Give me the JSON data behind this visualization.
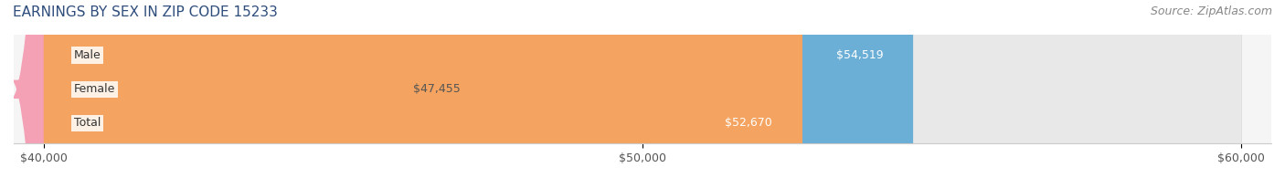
{
  "title": "EARNINGS BY SEX IN ZIP CODE 15233",
  "source": "Source: ZipAtlas.com",
  "categories": [
    "Male",
    "Female",
    "Total"
  ],
  "values": [
    54519,
    47455,
    52670
  ],
  "bar_colors": [
    "#6baed6",
    "#f4a0b5",
    "#f4a460"
  ],
  "bar_colors_light": [
    "#afd4ed",
    "#f9ccd8",
    "#f9cc9a"
  ],
  "labels": [
    "$54,519",
    "$47,455",
    "$52,670"
  ],
  "xmin": 40000,
  "xmax": 60000,
  "xticks": [
    40000,
    50000,
    60000
  ],
  "xtick_labels": [
    "$40,000",
    "$50,000",
    "$60,000"
  ],
  "title_color": "#2e4d7b",
  "title_fontsize": 11,
  "source_color": "#888888",
  "source_fontsize": 9,
  "bar_height": 0.55,
  "label_colors": [
    "white",
    "#555555",
    "white"
  ],
  "background_color": "#f5f5f5"
}
